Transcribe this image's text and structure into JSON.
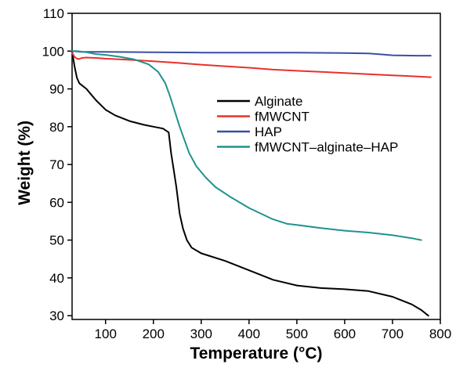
{
  "chart_data": {
    "type": "line",
    "title": "",
    "xlabel": "Temperature (°C)",
    "ylabel": "Weight (%)",
    "xlim": [
      30,
      800
    ],
    "ylim": [
      29,
      110
    ],
    "xticks": [
      100,
      200,
      300,
      400,
      500,
      600,
      700,
      800
    ],
    "yticks": [
      30,
      40,
      50,
      60,
      70,
      80,
      90,
      100,
      110
    ],
    "grid": false,
    "legend_position": "center-right",
    "series": [
      {
        "name": "Alginate",
        "color": "#000000",
        "x": [
          30,
          35,
          40,
          45,
          50,
          60,
          70,
          80,
          100,
          120,
          150,
          180,
          200,
          220,
          232,
          237,
          242,
          248,
          255,
          262,
          270,
          280,
          300,
          350,
          400,
          450,
          500,
          550,
          600,
          650,
          700,
          740,
          760,
          775
        ],
        "y": [
          100,
          96,
          93,
          91.5,
          91,
          90,
          88.5,
          87,
          84.5,
          83,
          81.5,
          80.5,
          80,
          79.5,
          78.5,
          73,
          69,
          64,
          57,
          53,
          50,
          48,
          46.5,
          44.5,
          42,
          39.5,
          38,
          37.3,
          37,
          36.5,
          35,
          33,
          31.5,
          30
        ]
      },
      {
        "name": "fMWCNT",
        "color": "#e8312b",
        "x": [
          30,
          35,
          40,
          45,
          50,
          60,
          80,
          100,
          150,
          200,
          250,
          300,
          350,
          400,
          450,
          500,
          550,
          600,
          650,
          700,
          750,
          780
        ],
        "y": [
          99.5,
          98.5,
          98,
          97.9,
          98.2,
          98.3,
          98.2,
          98,
          97.7,
          97.3,
          96.9,
          96.4,
          96,
          95.6,
          95.1,
          94.8,
          94.5,
          94.2,
          93.9,
          93.6,
          93.3,
          93.1
        ]
      },
      {
        "name": "HAP",
        "color": "#3a4fa3",
        "x": [
          30,
          50,
          100,
          200,
          300,
          400,
          500,
          600,
          650,
          680,
          700,
          750,
          780
        ],
        "y": [
          100,
          99.8,
          99.8,
          99.7,
          99.6,
          99.6,
          99.6,
          99.5,
          99.4,
          99.1,
          98.9,
          98.8,
          98.8
        ]
      },
      {
        "name": "fMWCNT–alginate–HAP",
        "color": "#1f9390",
        "x": [
          30,
          40,
          60,
          80,
          100,
          130,
          160,
          190,
          210,
          225,
          235,
          245,
          255,
          265,
          275,
          290,
          310,
          330,
          360,
          400,
          450,
          480,
          500,
          550,
          600,
          650,
          700,
          740,
          760
        ],
        "y": [
          100,
          100,
          99.7,
          99.2,
          99,
          98.5,
          97.8,
          96.5,
          94.5,
          91.5,
          88,
          84,
          80,
          76.5,
          73,
          69.5,
          66.5,
          64,
          61.5,
          58.5,
          55.5,
          54.3,
          54,
          53.2,
          52.5,
          52,
          51.3,
          50.5,
          50
        ]
      }
    ]
  }
}
